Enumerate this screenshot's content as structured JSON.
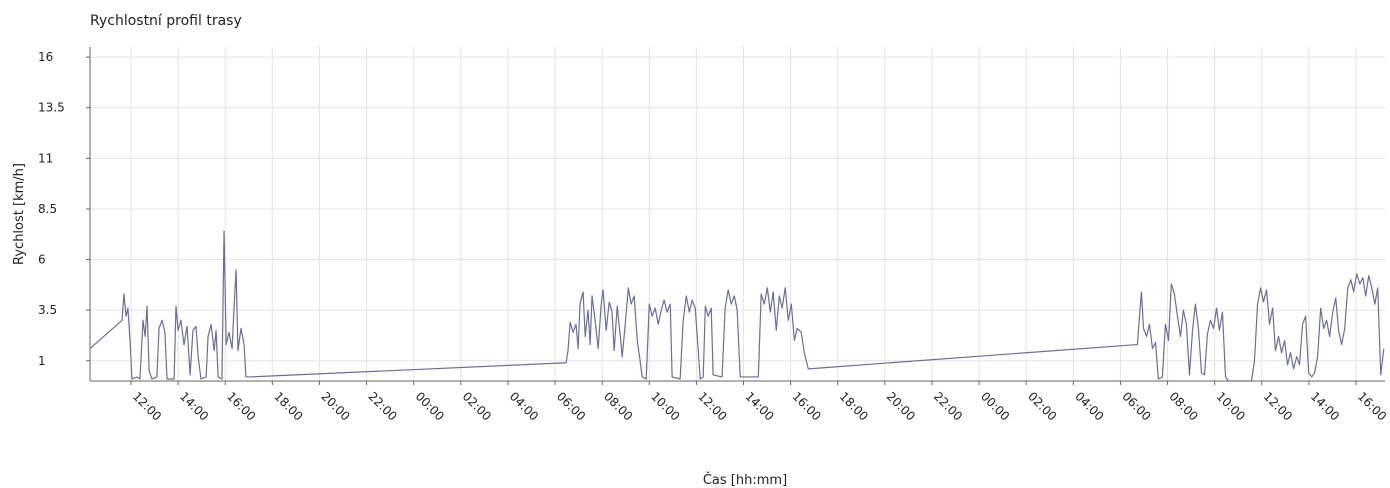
{
  "chart_data": {
    "type": "line",
    "title": "Rychlostní profil trasy",
    "x_label": "Čas  [hh:mm]",
    "y_label": "Rychlost [km/h]",
    "color": "#6e6e92",
    "grid": true,
    "xlim": [
      10.26,
      65.23
    ],
    "ylim": [
      0,
      16.5
    ],
    "yticks": [
      1,
      3.5,
      6,
      8.5,
      11,
      13.5,
      16
    ],
    "xticks": [
      {
        "value": 12,
        "label": "12:00"
      },
      {
        "value": 14,
        "label": "14:00"
      },
      {
        "value": 16,
        "label": "16:00"
      },
      {
        "value": 18,
        "label": "18:00"
      },
      {
        "value": 20,
        "label": "20:00"
      },
      {
        "value": 22,
        "label": "22:00"
      },
      {
        "value": 24,
        "label": "00:00"
      },
      {
        "value": 26,
        "label": "02:00"
      },
      {
        "value": 28,
        "label": "04:00"
      },
      {
        "value": 30,
        "label": "06:00"
      },
      {
        "value": 32,
        "label": "08:00"
      },
      {
        "value": 34,
        "label": "10:00"
      },
      {
        "value": 36,
        "label": "12:00"
      },
      {
        "value": 38,
        "label": "14:00"
      },
      {
        "value": 40,
        "label": "16:00"
      },
      {
        "value": 42,
        "label": "18:00"
      },
      {
        "value": 44,
        "label": "20:00"
      },
      {
        "value": 46,
        "label": "22:00"
      },
      {
        "value": 48,
        "label": "00:00"
      },
      {
        "value": 50,
        "label": "02:00"
      },
      {
        "value": 52,
        "label": "04:00"
      },
      {
        "value": 54,
        "label": "06:00"
      },
      {
        "value": 56,
        "label": "08:00"
      },
      {
        "value": 58,
        "label": "10:00"
      },
      {
        "value": 60,
        "label": "12:00"
      },
      {
        "value": 62,
        "label": "14:00"
      },
      {
        "value": 64,
        "label": "16:00"
      }
    ],
    "x": [
      10.26,
      11.62,
      11.7,
      11.79,
      11.87,
      11.96,
      12.04,
      12.26,
      12.38,
      12.51,
      12.6,
      12.68,
      12.77,
      12.89,
      13.1,
      13.19,
      13.32,
      13.44,
      13.53,
      13.83,
      13.91,
      14.0,
      14.12,
      14.25,
      14.38,
      14.51,
      14.63,
      14.76,
      14.85,
      14.97,
      15.19,
      15.27,
      15.4,
      15.53,
      15.61,
      15.7,
      15.86,
      15.95,
      16.04,
      16.16,
      16.29,
      16.37,
      16.46,
      16.54,
      16.67,
      16.8,
      16.88,
      17.05,
      30.47,
      30.55,
      30.64,
      30.77,
      30.89,
      30.98,
      31.06,
      31.19,
      31.28,
      31.4,
      31.49,
      31.57,
      31.7,
      31.83,
      31.96,
      32.04,
      32.17,
      32.3,
      32.42,
      32.51,
      32.64,
      32.77,
      32.85,
      32.98,
      33.11,
      33.23,
      33.36,
      33.49,
      33.61,
      33.7,
      33.87,
      34.0,
      34.12,
      34.25,
      34.38,
      34.51,
      34.63,
      34.76,
      34.89,
      34.97,
      35.31,
      35.44,
      35.57,
      35.7,
      35.82,
      35.95,
      36.08,
      36.16,
      36.29,
      36.38,
      36.5,
      36.63,
      36.71,
      37.09,
      37.22,
      37.35,
      37.48,
      37.61,
      37.73,
      37.86,
      38.63,
      38.75,
      38.88,
      39.01,
      39.14,
      39.26,
      39.39,
      39.52,
      39.64,
      39.77,
      39.9,
      40.03,
      40.16,
      40.28,
      40.45,
      40.58,
      40.75,
      54.72,
      54.81,
      54.89,
      54.98,
      55.11,
      55.23,
      55.36,
      55.49,
      55.61,
      55.78,
      55.91,
      56.04,
      56.16,
      56.29,
      56.42,
      56.55,
      56.67,
      56.8,
      56.93,
      57.06,
      57.18,
      57.31,
      57.44,
      57.57,
      57.69,
      57.82,
      57.95,
      58.08,
      58.2,
      58.33,
      58.46,
      58.59,
      59.56,
      59.69,
      59.82,
      59.95,
      60.07,
      60.2,
      60.33,
      60.46,
      60.58,
      60.71,
      60.84,
      60.97,
      61.09,
      61.22,
      61.35,
      61.48,
      61.6,
      61.73,
      61.86,
      61.99,
      62.12,
      62.24,
      62.37,
      62.5,
      62.63,
      62.75,
      62.88,
      63.01,
      63.14,
      63.26,
      63.39,
      63.52,
      63.65,
      63.78,
      63.9,
      64.03,
      64.16,
      64.29,
      64.41,
      64.54,
      64.67,
      64.8,
      64.92,
      65.05,
      65.18
    ],
    "values": [
      1.6,
      3.0,
      4.3,
      3.2,
      3.6,
      2.0,
      0.1,
      0.2,
      0.1,
      3.0,
      2.2,
      3.7,
      0.5,
      0.1,
      0.2,
      2.6,
      3.0,
      2.4,
      0.1,
      0.1,
      3.7,
      2.5,
      3.0,
      1.8,
      2.7,
      0.3,
      2.5,
      2.7,
      1.2,
      0.1,
      0.2,
      2.2,
      2.8,
      1.5,
      2.5,
      0.2,
      0.1,
      7.4,
      1.8,
      2.4,
      1.6,
      3.5,
      5.5,
      1.5,
      2.6,
      1.8,
      0.2,
      0.2,
      0.9,
      1.5,
      2.9,
      2.4,
      2.8,
      1.6,
      3.8,
      4.4,
      2.2,
      3.5,
      1.8,
      4.2,
      3.0,
      1.6,
      3.8,
      4.5,
      2.5,
      3.9,
      3.4,
      1.5,
      3.7,
      2.2,
      1.2,
      2.8,
      4.6,
      3.8,
      4.2,
      2.0,
      1.0,
      0.2,
      0.1,
      3.8,
      3.2,
      3.6,
      2.8,
      3.5,
      4.0,
      3.4,
      3.8,
      0.2,
      0.1,
      3.0,
      4.2,
      3.4,
      4.0,
      3.6,
      1.5,
      0.1,
      0.2,
      3.7,
      3.2,
      3.6,
      0.3,
      0.2,
      3.6,
      4.5,
      3.8,
      4.2,
      3.5,
      0.2,
      0.2,
      4.3,
      3.8,
      4.6,
      3.4,
      4.4,
      2.5,
      4.2,
      3.6,
      4.6,
      3.0,
      3.8,
      2.0,
      2.6,
      2.4,
      1.4,
      0.6,
      1.8,
      3.2,
      4.4,
      2.6,
      2.2,
      2.8,
      1.6,
      1.9,
      0.1,
      0.2,
      2.8,
      2.0,
      4.8,
      4.3,
      3.2,
      2.2,
      3.5,
      2.8,
      0.3,
      2.5,
      3.8,
      2.6,
      0.4,
      0.3,
      2.3,
      3.0,
      2.6,
      3.6,
      2.5,
      3.4,
      0.2,
      0,
      0,
      1.0,
      3.8,
      4.6,
      3.9,
      4.5,
      2.8,
      3.6,
      1.5,
      2.2,
      1.4,
      2.0,
      0.8,
      1.4,
      0.6,
      1.2,
      0.8,
      2.8,
      3.2,
      0.4,
      0.2,
      0.4,
      1.2,
      3.6,
      2.6,
      3.0,
      2.2,
      3.4,
      4.1,
      2.5,
      1.8,
      2.6,
      4.6,
      5.0,
      4.4,
      5.3,
      4.8,
      5.1,
      4.2,
      5.2,
      4.6,
      3.8,
      4.6,
      0.3,
      1.6
    ]
  }
}
